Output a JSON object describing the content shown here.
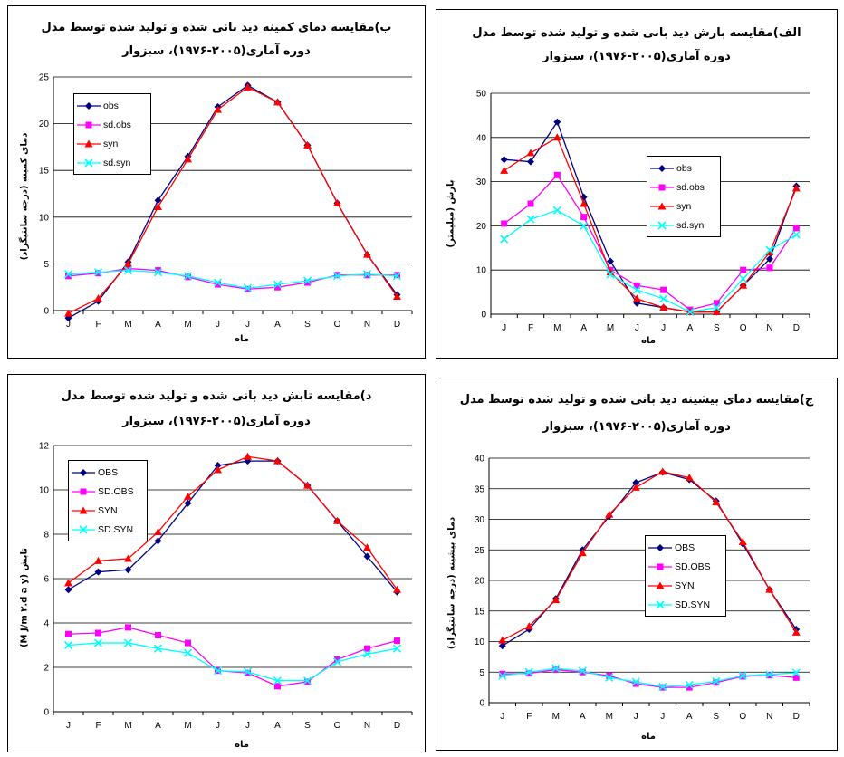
{
  "chart_data": [
    {
      "id": "p1",
      "type": "line",
      "title": "الف)مقایسه بارش دید بانی شده و تولید شده توسط مدل",
      "subtitle": "دوره آماری(۲۰۰۵-۱۹۷۶)، سبزوار",
      "xlabel": "ماه",
      "ylabel": "بارش (میلیمتر)",
      "categories": [
        "J",
        "F",
        "M",
        "A",
        "M",
        "J",
        "J",
        "A",
        "S",
        "O",
        "N",
        "D"
      ],
      "ylim": [
        0,
        50
      ],
      "yticks": [
        0,
        10,
        20,
        30,
        40,
        50
      ],
      "legend_position": "center",
      "series": [
        {
          "name": "obs",
          "color": "#000080",
          "marker": "diamond",
          "values": [
            35,
            34.5,
            43.5,
            26.5,
            12,
            2.5,
            1.5,
            0.5,
            0.5,
            6.5,
            12.5,
            29
          ]
        },
        {
          "name": "sd.obs",
          "color": "#FF00FF",
          "marker": "square",
          "values": [
            20.5,
            25,
            31.5,
            22,
            10,
            6.5,
            5.5,
            1,
            2.5,
            10,
            10.5,
            19.5
          ]
        },
        {
          "name": "syn",
          "color": "#FF0000",
          "marker": "triangle",
          "values": [
            32.5,
            36.5,
            40,
            25,
            9.5,
            3.5,
            1.5,
            0.5,
            0.5,
            6.5,
            14,
            28.5
          ]
        },
        {
          "name": "sd.syn",
          "color": "#00FFFF",
          "marker": "x",
          "values": [
            17,
            21.5,
            23.5,
            20,
            9,
            5.5,
            3.5,
            0.5,
            1.5,
            8,
            14.5,
            18
          ]
        }
      ]
    },
    {
      "id": "p2",
      "type": "line",
      "title": "ب)مقایسه دمای کمینه دید بانی شده و تولید شده توسط مدل",
      "subtitle": "دوره آماری(۲۰۰۵-۱۹۷۶)، سبزوار",
      "xlabel": "ماه",
      "ylabel": "دمای کمینه (درجه سانتیگراد)",
      "categories": [
        "J",
        "F",
        "M",
        "A",
        "M",
        "J",
        "J",
        "A",
        "S",
        "O",
        "N",
        "D"
      ],
      "ylim": [
        0,
        25
      ],
      "yticks": [
        0,
        5,
        10,
        15,
        20,
        25
      ],
      "legend_position": "top-left",
      "series": [
        {
          "name": "obs",
          "color": "#000080",
          "marker": "diamond",
          "values": [
            -0.8,
            1,
            5.2,
            11.8,
            16.5,
            21.8,
            24.1,
            22.3,
            17.7,
            11.5,
            6,
            1.7
          ]
        },
        {
          "name": "sd.obs",
          "color": "#FF00FF",
          "marker": "square",
          "values": [
            3.7,
            4,
            4.5,
            4.3,
            3.6,
            2.8,
            2.3,
            2.5,
            3,
            3.8,
            3.8,
            3.8
          ]
        },
        {
          "name": "syn",
          "color": "#FF0000",
          "marker": "triangle",
          "values": [
            -0.3,
            1.3,
            5,
            11.1,
            16.2,
            21.5,
            23.9,
            22.3,
            17.7,
            11.5,
            6,
            1.5
          ]
        },
        {
          "name": "sd.syn",
          "color": "#00FFFF",
          "marker": "x",
          "values": [
            3.9,
            4.1,
            4.3,
            4.1,
            3.7,
            3,
            2.4,
            2.8,
            3.2,
            3.7,
            3.9,
            3.7
          ]
        }
      ]
    },
    {
      "id": "p3",
      "type": "line",
      "title": "ج)مقایسه دمای بیشینه دید بانی شده و تولید شده توسط مدل",
      "subtitle": "دوره آماری(۲۰۰۵-۱۹۷۶)، سبزوار",
      "xlabel": "ماه",
      "ylabel": "دمای بیشینه (درجه سانتیگراد)",
      "categories": [
        "J",
        "F",
        "M",
        "A",
        "M",
        "J",
        "J",
        "A",
        "S",
        "O",
        "N",
        "D"
      ],
      "ylim": [
        0,
        40
      ],
      "yticks": [
        0,
        5,
        10,
        15,
        20,
        25,
        30,
        35,
        40
      ],
      "legend_position": "center",
      "series": [
        {
          "name": "OBS",
          "color": "#000080",
          "marker": "diamond",
          "values": [
            9.3,
            12,
            17,
            25,
            30.5,
            36,
            37.7,
            36.5,
            33,
            26,
            18.5,
            12
          ]
        },
        {
          "name": "SD.OBS",
          "color": "#FF00FF",
          "marker": "square",
          "values": [
            4.7,
            4.8,
            5.4,
            5,
            4.4,
            3.1,
            2.5,
            2.5,
            3.3,
            4.3,
            4.5,
            4.1
          ]
        },
        {
          "name": "SYN",
          "color": "#FF0000",
          "marker": "triangle",
          "values": [
            10.2,
            12.5,
            16.8,
            24.5,
            30.8,
            35.2,
            37.8,
            36.8,
            32.8,
            26.3,
            18.5,
            11.5
          ]
        },
        {
          "name": "SD.SYN",
          "color": "#00FFFF",
          "marker": "x",
          "values": [
            4.4,
            5,
            5.6,
            5.2,
            4.1,
            3.4,
            2.6,
            2.9,
            3.5,
            4.4,
            4.6,
            4.9
          ]
        }
      ]
    },
    {
      "id": "p4",
      "type": "line",
      "title": "د)مقایسه تابش دید بانی شده و تولید شده توسط مدل",
      "subtitle": "دوره آماری(۲۰۰۵-۱۹۷۶)، سبزوار",
      "xlabel": "ماه",
      "ylabel": "تابش (M J/m ۲.d a y)",
      "categories": [
        "J",
        "F",
        "M",
        "A",
        "M",
        "J",
        "J",
        "A",
        "S",
        "O",
        "N",
        "D"
      ],
      "ylim": [
        0,
        12
      ],
      "yticks": [
        0,
        2,
        4,
        6,
        8,
        10,
        12
      ],
      "legend_position": "top-left",
      "series": [
        {
          "name": "OBS",
          "color": "#000080",
          "marker": "diamond",
          "values": [
            5.5,
            6.3,
            6.4,
            7.7,
            9.4,
            11.1,
            11.3,
            11.3,
            10.2,
            8.6,
            7,
            5.4
          ]
        },
        {
          "name": "SD.OBS",
          "color": "#FF00FF",
          "marker": "square",
          "values": [
            3.5,
            3.55,
            3.8,
            3.45,
            3.1,
            1.85,
            1.75,
            1.15,
            1.35,
            2.35,
            2.85,
            3.2
          ]
        },
        {
          "name": "SYN",
          "color": "#FF0000",
          "marker": "triangle",
          "values": [
            5.8,
            6.8,
            6.9,
            8.1,
            9.7,
            10.9,
            11.5,
            11.3,
            10.2,
            8.6,
            7.4,
            5.5
          ]
        },
        {
          "name": "SD.SYN",
          "color": "#00FFFF",
          "marker": "x",
          "values": [
            3,
            3.1,
            3.1,
            2.85,
            2.65,
            1.85,
            1.8,
            1.4,
            1.4,
            2.25,
            2.6,
            2.85
          ]
        }
      ]
    }
  ]
}
